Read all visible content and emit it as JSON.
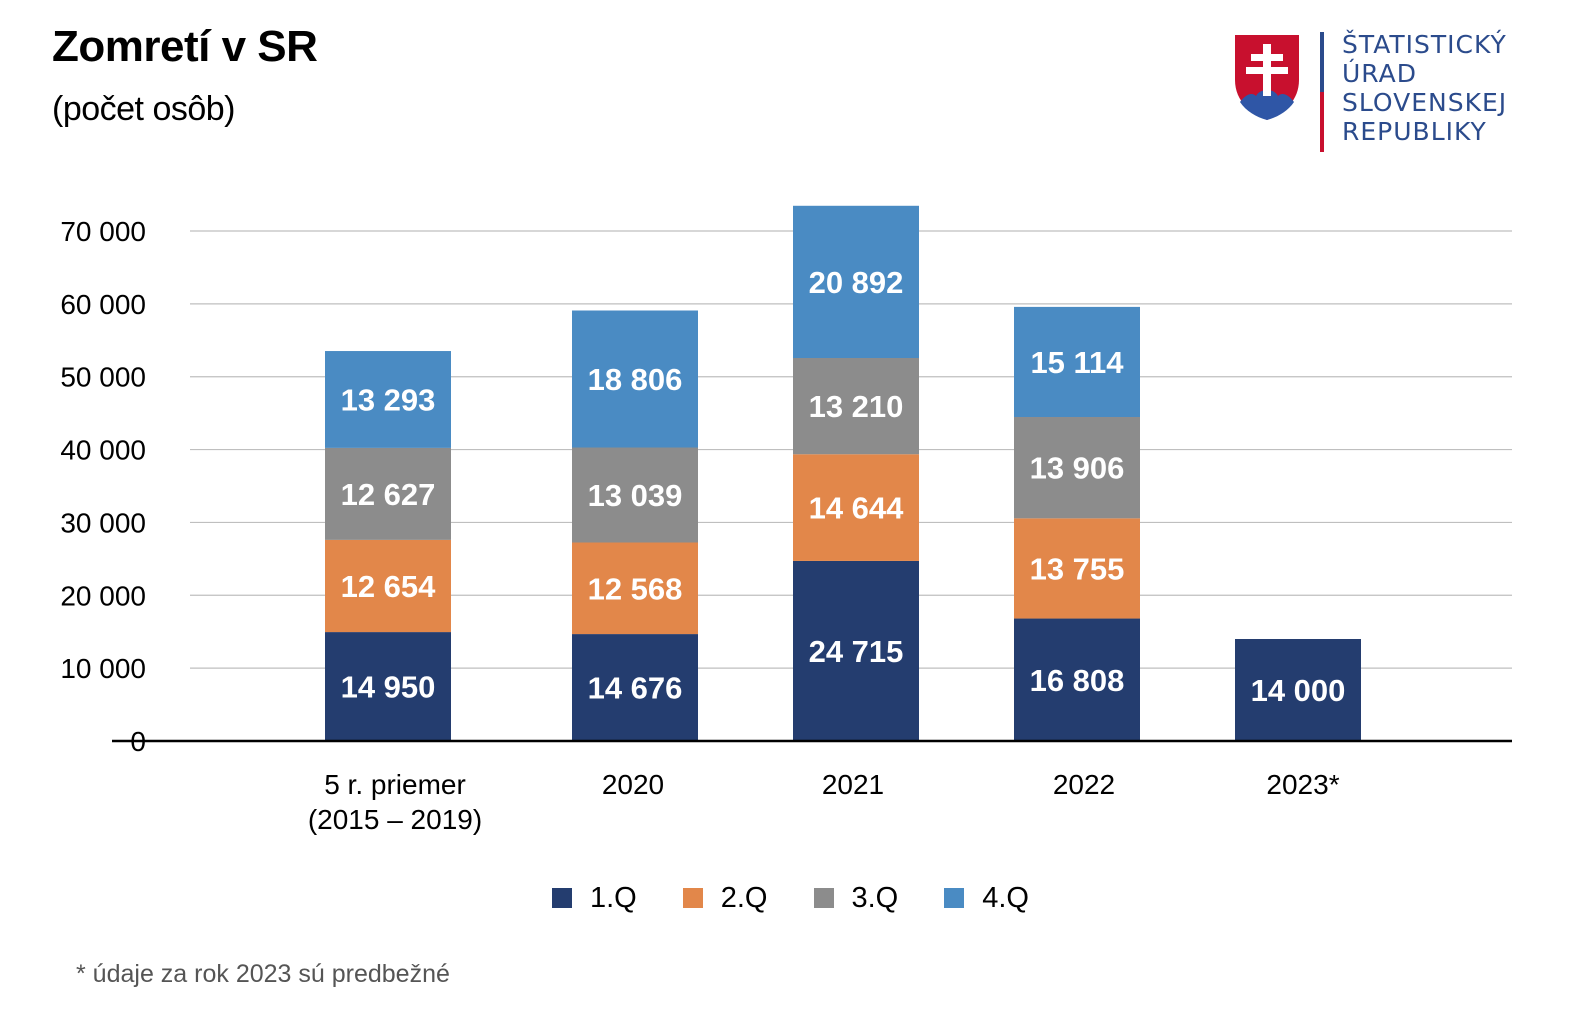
{
  "header": {
    "title": "Zomretí v SR",
    "subtitle": "(počet osôb)"
  },
  "logo": {
    "lines": [
      "ŠTATISTICKÝ",
      "ÚRAD",
      "SLOVENSKEJ",
      "REPUBLIKY"
    ],
    "icon": "slovak-coat-of-arms-icon"
  },
  "footnote": "* údaje za rok 2023 sú predbežné",
  "colors": {
    "q1": "#243d6f",
    "q2": "#e2874a",
    "q3": "#8c8c8c",
    "q4": "#4a8bc3",
    "grid": "#bfbfbf",
    "axis": "#000000",
    "logo_blue": "#2b4b8c",
    "logo_red": "#c8102e"
  },
  "chart_data": {
    "type": "bar",
    "stacked": true,
    "categories": [
      [
        "5 r. priemer",
        "(2015 – 2019)"
      ],
      [
        "2020"
      ],
      [
        "2021"
      ],
      [
        "2022"
      ],
      [
        "2023*"
      ]
    ],
    "series": [
      {
        "name": "1.Q",
        "values": [
          14950,
          14676,
          24715,
          16808,
          14000
        ]
      },
      {
        "name": "2.Q",
        "values": [
          12654,
          12568,
          14644,
          13755,
          null
        ]
      },
      {
        "name": "3.Q",
        "values": [
          12627,
          13039,
          13210,
          13906,
          null
        ]
      },
      {
        "name": "4.Q",
        "values": [
          13293,
          18806,
          20892,
          15114,
          null
        ]
      }
    ],
    "data_labels": [
      [
        "14 950",
        "14 676",
        "24 715",
        "16 808",
        "14 000"
      ],
      [
        "12 654",
        "12 568",
        "14 644",
        "13 755",
        ""
      ],
      [
        "12 627",
        "13 039",
        "13 210",
        "13 906",
        ""
      ],
      [
        "13 293",
        "18 806",
        "20 892",
        "15 114",
        ""
      ]
    ],
    "ylim": [
      0,
      70000
    ],
    "yticks": [
      0,
      10000,
      20000,
      30000,
      40000,
      50000,
      60000,
      70000
    ],
    "ytick_labels": [
      "0",
      "10 000",
      "20 000",
      "30 000",
      "40 000",
      "50 000",
      "60 000",
      "70 000"
    ],
    "grid": true,
    "legend_position": "bottom"
  }
}
